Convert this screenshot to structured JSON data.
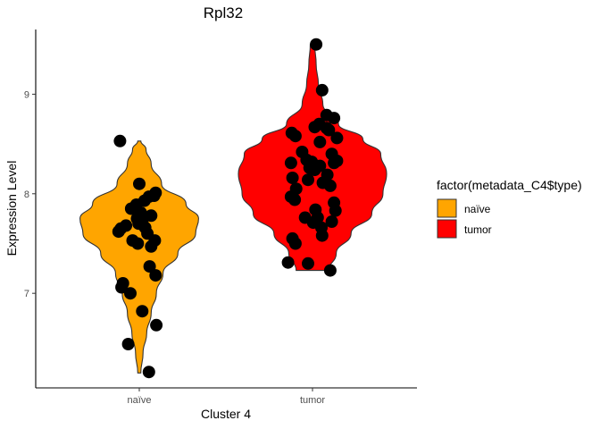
{
  "chart_data": {
    "type": "violin",
    "title": "Rpl32",
    "xlabel": "Cluster 4",
    "ylabel": "Expression Level",
    "categories": [
      "naïve",
      "tumor"
    ],
    "ylim": [
      6.05,
      9.65
    ],
    "yticks": [
      7,
      8,
      9
    ],
    "grid": false,
    "legend": {
      "title": "factor(metadata_C4$type)",
      "placement": "right",
      "entries": [
        {
          "label": "naïve",
          "color": "#FFA500"
        },
        {
          "label": "tumor",
          "color": "#FF0000"
        }
      ]
    },
    "series": [
      {
        "category": "naïve",
        "color": "#FFA500",
        "range": [
          6.2,
          8.53
        ],
        "density": [
          [
            6.2,
            0.02
          ],
          [
            6.4,
            0.05
          ],
          [
            6.6,
            0.1
          ],
          [
            6.8,
            0.16
          ],
          [
            7.0,
            0.23
          ],
          [
            7.2,
            0.32
          ],
          [
            7.4,
            0.52
          ],
          [
            7.6,
            0.76
          ],
          [
            7.75,
            0.8
          ],
          [
            7.9,
            0.63
          ],
          [
            8.1,
            0.3
          ],
          [
            8.3,
            0.16
          ],
          [
            8.45,
            0.09
          ],
          [
            8.53,
            0.02
          ]
        ],
        "points": [
          [
            -0.26,
            8.53
          ],
          [
            0.0,
            8.1
          ],
          [
            0.22,
            8.01
          ],
          [
            0.2,
            7.98
          ],
          [
            0.13,
            7.97
          ],
          [
            0.07,
            7.93
          ],
          [
            -0.04,
            7.89
          ],
          [
            -0.11,
            7.85
          ],
          [
            0.02,
            7.81
          ],
          [
            0.16,
            7.78
          ],
          [
            -0.03,
            7.75
          ],
          [
            0.04,
            7.72
          ],
          [
            -0.01,
            7.7
          ],
          [
            -0.18,
            7.68
          ],
          [
            0.08,
            7.66
          ],
          [
            -0.25,
            7.65
          ],
          [
            -0.28,
            7.62
          ],
          [
            0.11,
            7.6
          ],
          [
            0.21,
            7.53
          ],
          [
            -0.09,
            7.53
          ],
          [
            -0.02,
            7.5
          ],
          [
            0.16,
            7.47
          ],
          [
            0.14,
            7.27
          ],
          [
            0.22,
            7.18
          ],
          [
            -0.22,
            7.1
          ],
          [
            -0.24,
            7.06
          ],
          [
            -0.12,
            7.0
          ],
          [
            0.04,
            6.82
          ],
          [
            0.23,
            6.68
          ],
          [
            -0.15,
            6.49
          ],
          [
            0.13,
            6.21
          ]
        ]
      },
      {
        "category": "tumor",
        "color": "#FF0000",
        "range": [
          7.23,
          9.5
        ],
        "density": [
          [
            7.23,
            0.22
          ],
          [
            7.4,
            0.32
          ],
          [
            7.6,
            0.52
          ],
          [
            7.8,
            0.8
          ],
          [
            8.0,
            0.95
          ],
          [
            8.2,
            1.0
          ],
          [
            8.4,
            0.92
          ],
          [
            8.55,
            0.68
          ],
          [
            8.7,
            0.35
          ],
          [
            8.9,
            0.14
          ],
          [
            9.1,
            0.08
          ],
          [
            9.3,
            0.05
          ],
          [
            9.5,
            0.03
          ]
        ],
        "points": [
          [
            0.05,
            9.5
          ],
          [
            0.13,
            9.04
          ],
          [
            0.19,
            8.79
          ],
          [
            0.29,
            8.76
          ],
          [
            0.09,
            8.7
          ],
          [
            0.19,
            8.66
          ],
          [
            0.03,
            8.67
          ],
          [
            0.22,
            8.64
          ],
          [
            -0.28,
            8.61
          ],
          [
            -0.23,
            8.58
          ],
          [
            0.33,
            8.56
          ],
          [
            0.1,
            8.52
          ],
          [
            -0.14,
            8.42
          ],
          [
            0.26,
            8.4
          ],
          [
            -0.08,
            8.34
          ],
          [
            0.33,
            8.33
          ],
          [
            -0.01,
            8.32
          ],
          [
            0.29,
            8.31
          ],
          [
            -0.29,
            8.31
          ],
          [
            0.1,
            8.28
          ],
          [
            -0.04,
            8.26
          ],
          [
            0.03,
            8.24
          ],
          [
            0.2,
            8.19
          ],
          [
            -0.27,
            8.16
          ],
          [
            -0.06,
            8.14
          ],
          [
            0.14,
            8.11
          ],
          [
            0.24,
            8.08
          ],
          [
            -0.22,
            8.05
          ],
          [
            -0.29,
            7.97
          ],
          [
            -0.24,
            7.94
          ],
          [
            0.29,
            7.91
          ],
          [
            0.04,
            7.84
          ],
          [
            0.31,
            7.83
          ],
          [
            -0.1,
            7.76
          ],
          [
            0.07,
            7.76
          ],
          [
            0.26,
            7.72
          ],
          [
            0.01,
            7.71
          ],
          [
            0.12,
            7.66
          ],
          [
            0.13,
            7.58
          ],
          [
            -0.27,
            7.55
          ],
          [
            -0.23,
            7.5
          ],
          [
            -0.33,
            7.31
          ],
          [
            -0.06,
            7.3
          ],
          [
            0.24,
            7.23
          ]
        ]
      }
    ]
  }
}
